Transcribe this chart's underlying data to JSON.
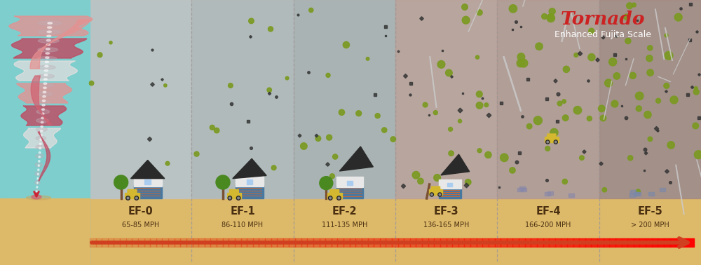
{
  "bg_sky": "#7ecece",
  "bg_ground": "#ddb96a",
  "title_tornado": "Tornado",
  "title_sub": "Enhanced Fujita Scale",
  "title_color": "#cc2222",
  "subtitle_color": "#ffffff",
  "categories": [
    "EF-0",
    "EF-1",
    "EF-2",
    "EF-3",
    "EF-4",
    "EF-5"
  ],
  "speeds": [
    "65-85 MPH",
    "86-110 MPH",
    "111-135 MPH",
    "136-165 MPH",
    "166-200 MPH",
    "> 200 MPH"
  ],
  "label_color": "#4a3010",
  "panel_colors": [
    "#c2c2c2",
    "#b8b8b8",
    "#b0b0b0",
    "#c0a098",
    "#b89890",
    "#a88880"
  ],
  "dashed_color": "#999999",
  "arrow_color": "#d04020",
  "debris_green": "#7a9a20",
  "debris_dark": "#333333",
  "debris_brown": "#8a6a40",
  "house_roof_dark": "#2a2a2a",
  "house_roof_light": "#444444",
  "house_wall": "#e8e8e8",
  "house_garage": "#4878a0",
  "car_yellow": "#d4b830",
  "car_gray": "#888888",
  "tree_green": "#4a8820",
  "tree_trunk": "#7a5030",
  "tornado_col1": "#e89090",
  "tornado_col2": "#d06070",
  "tornado_col3": "#c04860",
  "tornado_white": "#f0e0e0",
  "tornado_gray": "#c0b0b8"
}
